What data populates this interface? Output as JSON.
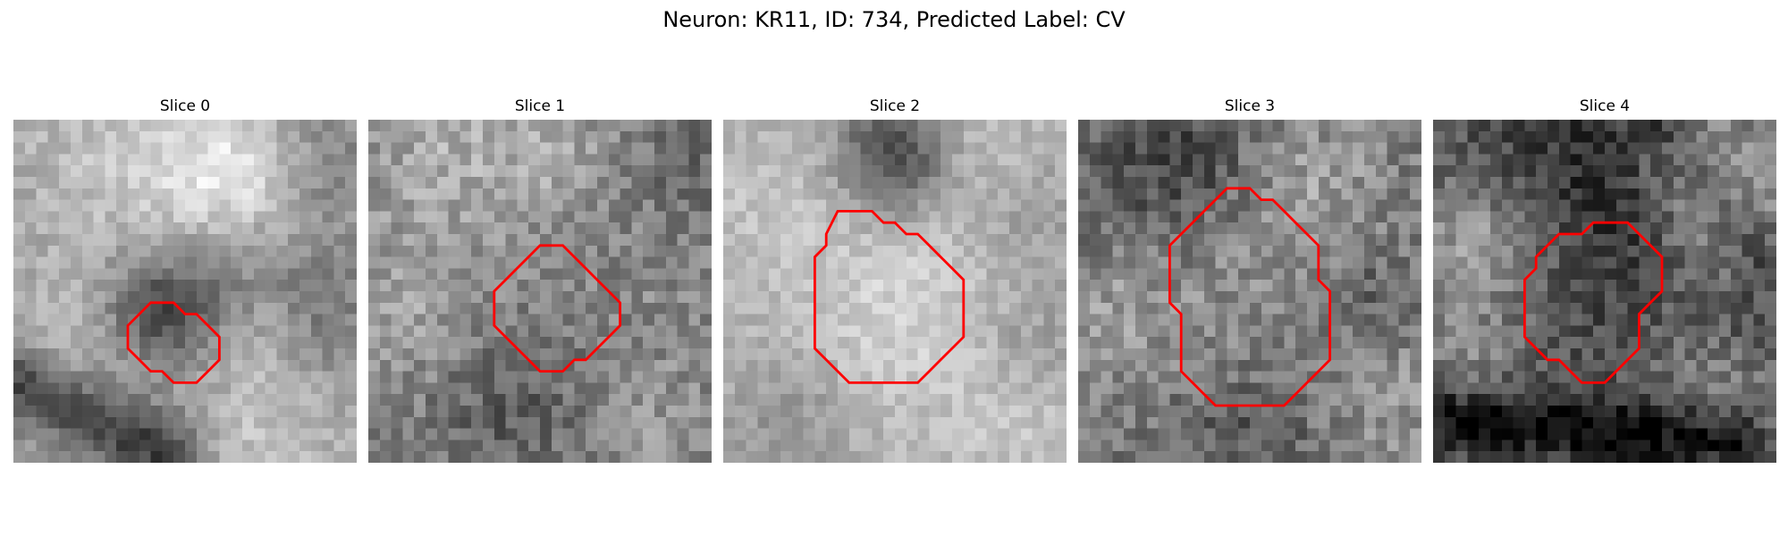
{
  "title": "Neuron: KR11, ID: 734, Predicted Label: CV",
  "colors": {
    "contour": "#ff0000",
    "colormap": "gray"
  },
  "panels": [
    {
      "title": "Slice 0",
      "base": 160,
      "noise": 45,
      "seed": 11,
      "features": [
        {
          "cx": 8,
          "cy": 3,
          "r": 6,
          "d": 30
        },
        {
          "cx": 17,
          "cy": 6,
          "r": 5,
          "d": 40
        },
        {
          "cx": 20,
          "cy": 4,
          "r": 4,
          "d": 40
        },
        {
          "cx": 27,
          "cy": 4,
          "r": 4,
          "d": -30
        },
        {
          "cx": 27,
          "cy": 17,
          "r": 4,
          "d": -40
        },
        {
          "cx": 13,
          "cy": 17,
          "r": 3.5,
          "d": -90
        },
        {
          "cx": 18,
          "cy": 13,
          "r": 4,
          "d": -30
        },
        {
          "cx": 22,
          "cy": 19,
          "r": 3,
          "d": 25
        },
        {
          "cx": 5,
          "cy": 22,
          "r": 6,
          "d": 30
        },
        {
          "cx": 22,
          "cy": 28,
          "r": 5,
          "d": 35
        }
      ],
      "bands": [
        {
          "x1": 0,
          "y1": 23,
          "x2": 13,
          "y2": 29,
          "w": 2.5,
          "d": -110
        }
      ],
      "contour": [
        [
          11,
          17
        ],
        [
          12,
          16
        ],
        [
          13,
          16
        ],
        [
          14,
          16
        ],
        [
          15,
          17
        ],
        [
          16,
          17
        ],
        [
          17,
          18
        ],
        [
          18,
          19
        ],
        [
          18,
          20
        ],
        [
          18,
          21
        ],
        [
          17,
          22
        ],
        [
          16,
          23
        ],
        [
          15,
          23
        ],
        [
          14,
          23
        ],
        [
          13,
          22
        ],
        [
          12,
          22
        ],
        [
          11,
          21
        ],
        [
          10,
          20
        ],
        [
          10,
          19
        ],
        [
          10,
          18
        ]
      ]
    },
    {
      "title": "Slice 1",
      "base": 130,
      "noise": 65,
      "seed": 23,
      "features": [
        {
          "cx": 7,
          "cy": 3,
          "r": 6,
          "d": 40
        },
        {
          "cx": 17,
          "cy": 3,
          "r": 5,
          "d": 30
        },
        {
          "cx": 27,
          "cy": 3,
          "r": 4,
          "d": -25
        },
        {
          "cx": 15.5,
          "cy": 15,
          "r": 5,
          "d": 15
        },
        {
          "cx": 15.5,
          "cy": 15,
          "r": 8,
          "d": -15
        },
        {
          "cx": 4,
          "cy": 17,
          "r": 5,
          "d": 35
        },
        {
          "cx": 26,
          "cy": 15,
          "r": 4,
          "d": 10
        },
        {
          "cx": 12,
          "cy": 25,
          "r": 5,
          "d": -35
        },
        {
          "cx": 24,
          "cy": 26,
          "r": 4,
          "d": 25
        }
      ],
      "bands": [],
      "contour": [
        [
          14,
          12
        ],
        [
          15,
          11
        ],
        [
          16,
          11
        ],
        [
          17,
          11
        ],
        [
          18,
          12
        ],
        [
          19,
          13
        ],
        [
          20,
          14
        ],
        [
          21,
          15
        ],
        [
          22,
          16
        ],
        [
          22,
          17
        ],
        [
          22,
          18
        ],
        [
          21,
          19
        ],
        [
          20,
          20
        ],
        [
          19,
          21
        ],
        [
          18,
          21
        ],
        [
          17,
          22
        ],
        [
          16,
          22
        ],
        [
          15,
          22
        ],
        [
          14,
          21
        ],
        [
          13,
          20
        ],
        [
          12,
          19
        ],
        [
          11,
          18
        ],
        [
          11,
          17
        ],
        [
          11,
          16
        ],
        [
          11,
          15
        ],
        [
          12,
          14
        ],
        [
          13,
          13
        ]
      ]
    },
    {
      "title": "Slice 2",
      "base": 175,
      "noise": 40,
      "seed": 37,
      "features": [
        {
          "cx": 15,
          "cy": 3,
          "r": 3.5,
          "d": -110
        },
        {
          "cx": 21,
          "cy": 3,
          "r": 4,
          "d": 20
        },
        {
          "cx": 4,
          "cy": 6,
          "r": 4,
          "d": 20
        },
        {
          "cx": 15,
          "cy": 17,
          "r": 7,
          "d": 35
        },
        {
          "cx": 27,
          "cy": 9,
          "r": 4,
          "d": -20
        },
        {
          "cx": 27,
          "cy": 20,
          "r": 3,
          "d": -25
        },
        {
          "cx": 6,
          "cy": 26,
          "r": 4,
          "d": -30
        },
        {
          "cx": 26,
          "cy": 27,
          "r": 4,
          "d": 20
        }
      ],
      "bands": [],
      "contour": [
        [
          10,
          8
        ],
        [
          11,
          8
        ],
        [
          12,
          8
        ],
        [
          13,
          8
        ],
        [
          14,
          9
        ],
        [
          15,
          9
        ],
        [
          16,
          10
        ],
        [
          17,
          10
        ],
        [
          18,
          11
        ],
        [
          19,
          12
        ],
        [
          20,
          13
        ],
        [
          21,
          14
        ],
        [
          21,
          15
        ],
        [
          21,
          16
        ],
        [
          21,
          17
        ],
        [
          21,
          18
        ],
        [
          21,
          19
        ],
        [
          20,
          20
        ],
        [
          19,
          21
        ],
        [
          18,
          22
        ],
        [
          17,
          23
        ],
        [
          16,
          23
        ],
        [
          15,
          23
        ],
        [
          14,
          23
        ],
        [
          13,
          23
        ],
        [
          12,
          23
        ],
        [
          11,
          23
        ],
        [
          10,
          22
        ],
        [
          9,
          21
        ],
        [
          8,
          20
        ],
        [
          8,
          19
        ],
        [
          8,
          18
        ],
        [
          8,
          17
        ],
        [
          8,
          16
        ],
        [
          8,
          15
        ],
        [
          8,
          12
        ],
        [
          9,
          11
        ],
        [
          9,
          10
        ]
      ]
    },
    {
      "title": "Slice 3",
      "base": 120,
      "noise": 70,
      "seed": 51,
      "features": [
        {
          "cx": 4,
          "cy": 5,
          "r": 5,
          "d": -25
        },
        {
          "cx": 10,
          "cy": 3,
          "r": 4,
          "d": -40
        },
        {
          "cx": 21,
          "cy": 5,
          "r": 4,
          "d": 35
        },
        {
          "cx": 15,
          "cy": 16,
          "r": 7,
          "d": 20
        },
        {
          "cx": 3,
          "cy": 17,
          "r": 4,
          "d": 35
        },
        {
          "cx": 25,
          "cy": 16,
          "r": 3,
          "d": -30
        },
        {
          "cx": 15,
          "cy": 28,
          "r": 5,
          "d": -35
        },
        {
          "cx": 27,
          "cy": 25,
          "r": 4,
          "d": 30
        }
      ],
      "bands": [],
      "contour": [
        [
          12,
          7
        ],
        [
          13,
          6
        ],
        [
          14,
          6
        ],
        [
          15,
          6
        ],
        [
          16,
          7
        ],
        [
          17,
          7
        ],
        [
          18,
          8
        ],
        [
          19,
          9
        ],
        [
          20,
          10
        ],
        [
          21,
          11
        ],
        [
          21,
          12
        ],
        [
          21,
          13
        ],
        [
          21,
          14
        ],
        [
          22,
          15
        ],
        [
          22,
          16
        ],
        [
          22,
          17
        ],
        [
          22,
          18
        ],
        [
          22,
          19
        ],
        [
          22,
          20
        ],
        [
          22,
          21
        ],
        [
          21,
          22
        ],
        [
          20,
          23
        ],
        [
          19,
          24
        ],
        [
          18,
          25
        ],
        [
          17,
          25
        ],
        [
          16,
          25
        ],
        [
          15,
          25
        ],
        [
          14,
          25
        ],
        [
          13,
          25
        ],
        [
          12,
          25
        ],
        [
          11,
          24
        ],
        [
          10,
          23
        ],
        [
          9,
          22
        ],
        [
          9,
          21
        ],
        [
          9,
          20
        ],
        [
          9,
          19
        ],
        [
          9,
          18
        ],
        [
          9,
          17
        ],
        [
          8,
          16
        ],
        [
          8,
          15
        ],
        [
          8,
          14
        ],
        [
          8,
          13
        ],
        [
          8,
          12
        ],
        [
          8,
          11
        ],
        [
          9,
          10
        ],
        [
          10,
          9
        ],
        [
          11,
          8
        ]
      ]
    },
    {
      "title": "Slice 4",
      "base": 110,
      "noise": 65,
      "seed": 67,
      "features": [
        {
          "cx": 15,
          "cy": 2,
          "r": 5,
          "d": -60
        },
        {
          "cx": 5,
          "cy": 4,
          "r": 4,
          "d": -30
        },
        {
          "cx": 22,
          "cy": 3,
          "r": 4,
          "d": 60
        },
        {
          "cx": 4,
          "cy": 11,
          "r": 4,
          "d": 60
        },
        {
          "cx": 26,
          "cy": 9,
          "r": 4,
          "d": 45
        },
        {
          "cx": 15,
          "cy": 16,
          "r": 7,
          "d": -35
        },
        {
          "cx": 17,
          "cy": 8,
          "r": 4,
          "d": -25
        },
        {
          "cx": 28,
          "cy": 17,
          "r": 3,
          "d": -35
        },
        {
          "cx": 24,
          "cy": 23,
          "r": 4,
          "d": 30
        },
        {
          "cx": 3,
          "cy": 21,
          "r": 3.5,
          "d": 30
        }
      ],
      "bands": [
        {
          "x1": 0,
          "y1": 26,
          "x2": 26,
          "y2": 28,
          "w": 2.2,
          "d": -100
        },
        {
          "x1": 20,
          "y1": 0,
          "x2": 29,
          "y2": 12,
          "w": 1.8,
          "d": -50
        }
      ],
      "contour": [
        [
          14,
          9
        ],
        [
          15,
          9
        ],
        [
          16,
          9
        ],
        [
          17,
          9
        ],
        [
          18,
          10
        ],
        [
          19,
          11
        ],
        [
          20,
          12
        ],
        [
          20,
          13
        ],
        [
          20,
          14
        ],
        [
          20,
          15
        ],
        [
          19,
          16
        ],
        [
          18,
          17
        ],
        [
          18,
          18
        ],
        [
          18,
          19
        ],
        [
          18,
          20
        ],
        [
          17,
          21
        ],
        [
          16,
          22
        ],
        [
          15,
          23
        ],
        [
          14,
          23
        ],
        [
          13,
          23
        ],
        [
          12,
          22
        ],
        [
          11,
          21
        ],
        [
          10,
          21
        ],
        [
          9,
          20
        ],
        [
          8,
          19
        ],
        [
          8,
          18
        ],
        [
          8,
          17
        ],
        [
          8,
          16
        ],
        [
          8,
          15
        ],
        [
          8,
          14
        ],
        [
          9,
          13
        ],
        [
          9,
          12
        ],
        [
          10,
          11
        ],
        [
          11,
          10
        ],
        [
          12,
          10
        ],
        [
          13,
          10
        ]
      ]
    }
  ]
}
